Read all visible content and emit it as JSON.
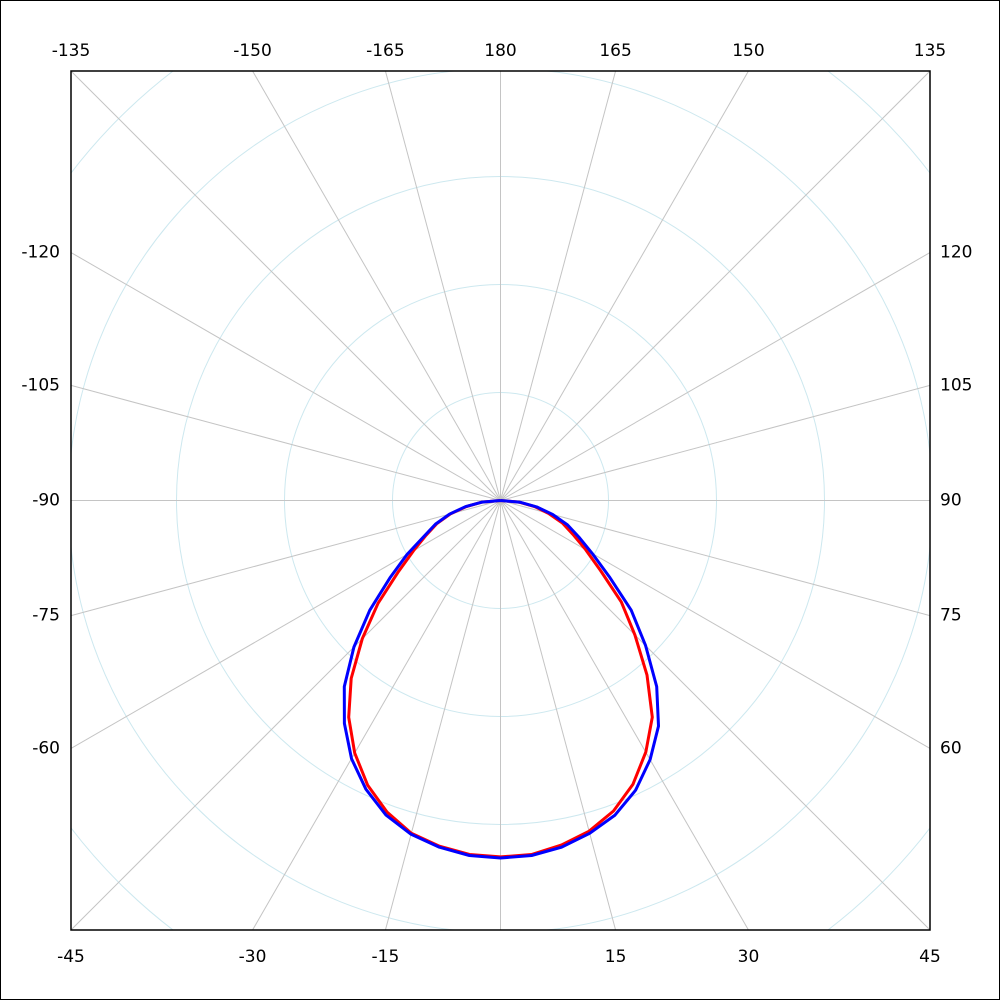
{
  "chart_data": {
    "type": "polar",
    "zero_direction": "bottom",
    "direction": "counterclockwise-left-negative",
    "theta": [
      -90,
      -85,
      -80,
      -75,
      -70,
      -65,
      -60,
      -55,
      -50,
      -45,
      -40,
      -35,
      -30,
      -25,
      -20,
      -15,
      -10,
      -5,
      0,
      5,
      10,
      15,
      20,
      25,
      30,
      35,
      40,
      45,
      50,
      55,
      60,
      65,
      70,
      75,
      80,
      85,
      90
    ],
    "series": [
      {
        "color": "#ff0000",
        "values": [
          0,
          0.17,
          0.32,
          0.48,
          0.63,
          0.76,
          0.93,
          1.16,
          1.48,
          1.81,
          2.15,
          2.45,
          2.7,
          2.91,
          3.07,
          3.19,
          3.25,
          3.29,
          3.3,
          3.29,
          3.24,
          3.17,
          3.06,
          2.9,
          2.69,
          2.45,
          2.11,
          1.76,
          1.46,
          1.13,
          0.91,
          0.74,
          0.61,
          0.46,
          0.32,
          0.17,
          0
        ]
      },
      {
        "color": "#0000ff",
        "values": [
          0,
          0.17,
          0.33,
          0.49,
          0.64,
          0.78,
          1.0,
          1.25,
          1.58,
          1.92,
          2.25,
          2.52,
          2.76,
          2.95,
          3.1,
          3.2,
          3.26,
          3.3,
          3.31,
          3.3,
          3.26,
          3.19,
          3.1,
          2.96,
          2.77,
          2.55,
          2.25,
          1.9,
          1.58,
          1.23,
          0.98,
          0.8,
          0.66,
          0.5,
          0.34,
          0.18,
          0
        ]
      }
    ],
    "rlim": [
      0,
      4
    ],
    "rticks": [
      1,
      2,
      3,
      4,
      5
    ],
    "thetaticks": [
      -165,
      -150,
      -135,
      -120,
      -105,
      -90,
      -75,
      -60,
      -45,
      -30,
      -15,
      {
        "value": 0,
        "label": null
      },
      15,
      30,
      45,
      60,
      75,
      90,
      105,
      120,
      135,
      150,
      165,
      180
    ],
    "grid": true
  }
}
